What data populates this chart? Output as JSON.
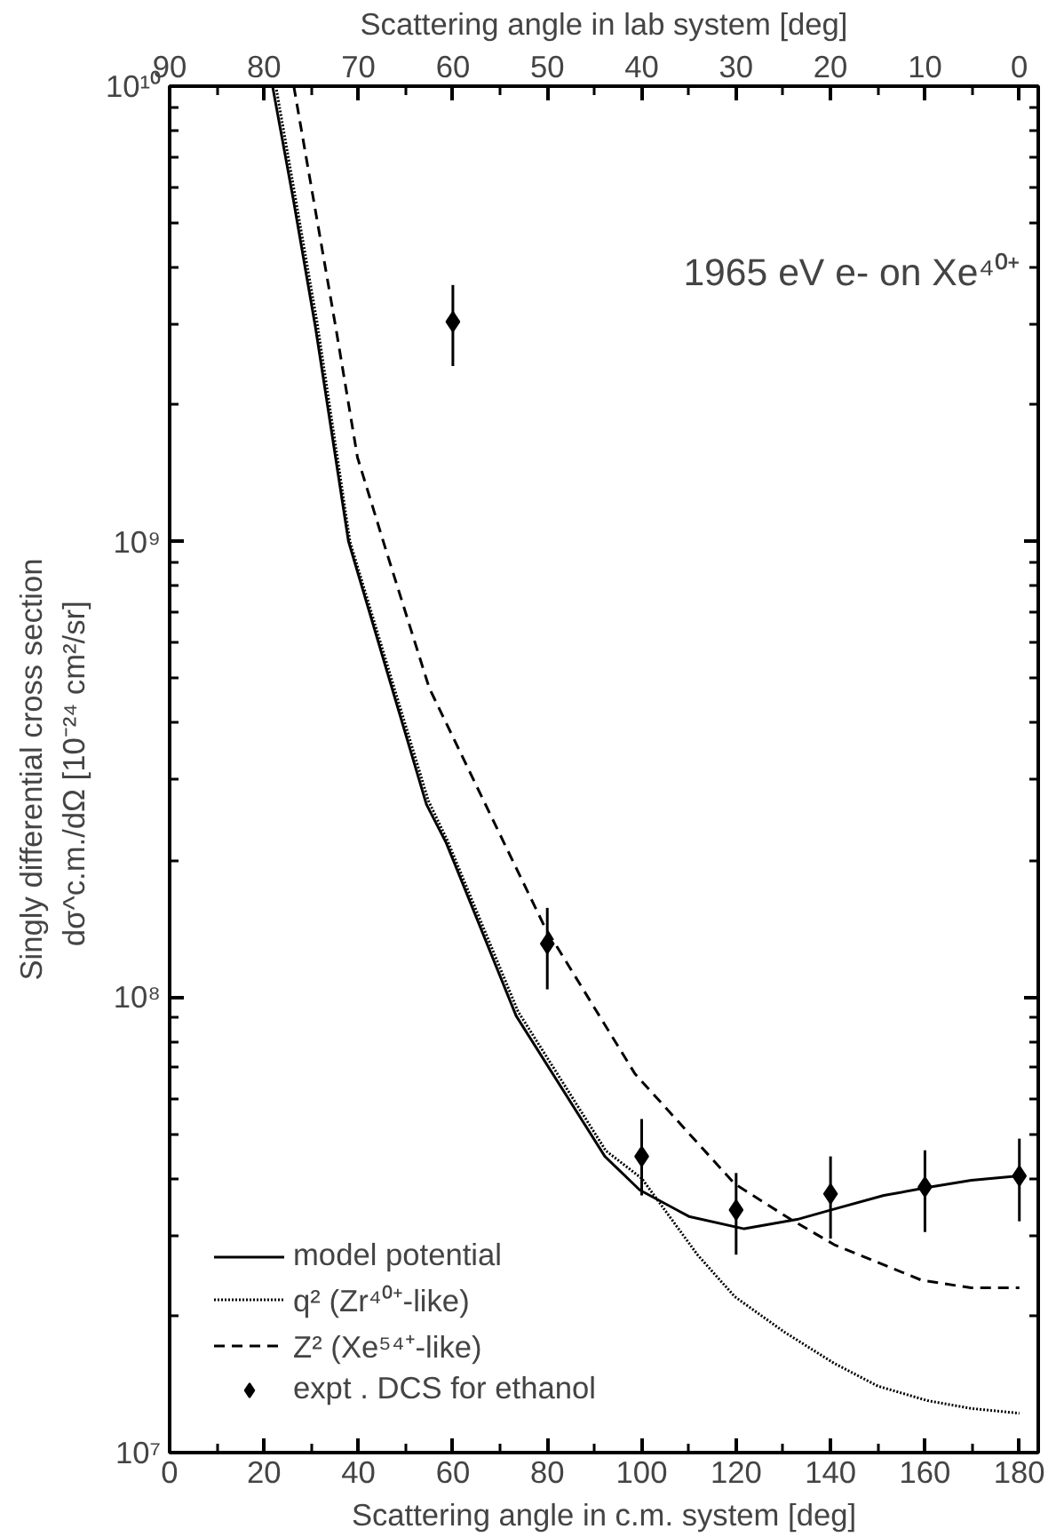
{
  "chart_data": {
    "type": "line",
    "title": "1965 eV e- on Xe⁴⁰⁺",
    "xlabel": "Scattering angle in c.m. system [deg]",
    "x2label": "Scattering angle in lab system [deg]",
    "ylabel": "Singly differential cross section\ndσ^c.m./dΩ  [10⁻²⁴ cm²/sr]",
    "log": "y",
    "grid": false,
    "legend": "bottom left",
    "xlim": [
      0,
      184
    ],
    "xticks": [
      0,
      20,
      40,
      60,
      80,
      100,
      120,
      140,
      160,
      180
    ],
    "x2lim": [
      90,
      -2
    ],
    "x2ticks": [
      90,
      80,
      70,
      60,
      50,
      40,
      30,
      20,
      10,
      0
    ],
    "ylim": [
      10000000.0,
      10000000000.0
    ],
    "yticks": [
      {
        "value": 10000000.0,
        "label": "10⁷"
      },
      {
        "value": 100000000.0,
        "label": "10⁸"
      },
      {
        "value": 1000000000.0,
        "label": "10⁹"
      },
      {
        "value": 10000000000.0,
        "label": "10¹⁰"
      }
    ],
    "series": [
      {
        "name": "model potential",
        "line_style": "solid",
        "color": "#000000",
        "x": [
          21.8,
          26.2,
          30.9,
          37.9,
          54.4,
          58.6,
          73.4,
          92.2,
          99.6,
          110,
          121.7,
          132.9,
          140.1,
          151.3,
          160.6,
          169.8,
          180
        ],
        "values": [
          10000000000.0,
          5640000000.0,
          2950000000.0,
          1000000000.0,
          265000000.0,
          218000000.0,
          91000000.0,
          44700000.0,
          37700000.0,
          33000000.0,
          31000000.0,
          32500000.0,
          34100000.0,
          36700000.0,
          38200000.0,
          39600000.0,
          40500000.0
        ]
      },
      {
        "name": "q² (Zr⁴⁰⁺-like)",
        "line_style": "dotted",
        "color": "#000000",
        "x": [
          22.5,
          26.5,
          31.3,
          38.2,
          54.8,
          58.9,
          73.8,
          92.4,
          100,
          111.8,
          119.7,
          130.2,
          140.8,
          150,
          160.6,
          169.8,
          180
        ],
        "values": [
          10000000000.0,
          5800000000.0,
          3000000000.0,
          1000000000.0,
          270000000.0,
          220000000.0,
          93000000.0,
          46000000.0,
          40000000.0,
          27200000.0,
          22000000.0,
          18400000.0,
          15700000.0,
          14000000.0,
          13000000.0,
          12500000.0,
          12200000.0
        ]
      },
      {
        "name": "Z² (Xe⁵⁴⁺-like)",
        "line_style": "dashed",
        "color": "#000000",
        "x": [
          26.3,
          35.2,
          39.8,
          45.8,
          55,
          68.9,
          79.4,
          98.6,
          119.7,
          131.6,
          140.8,
          159.3,
          169.8,
          180
        ],
        "values": [
          10000000000.0,
          2950000000.0,
          1530000000.0,
          960000000.0,
          477000000.0,
          240000000.0,
          143000000.0,
          67800000.0,
          38900000.0,
          32500000.0,
          28600000.0,
          23900000.0,
          23000000.0,
          23000000.0
        ]
      },
      {
        "name": "expt . DCS for ethanol",
        "type": "scatter",
        "marker": "diamond",
        "color": "#000000",
        "x": [
          60,
          80,
          100,
          120,
          140,
          160,
          180
        ],
        "values": [
          3040000000.0,
          131000000.0,
          44700000.0,
          34100000.0,
          37000000.0,
          38300000.0,
          40500000.0
        ],
        "errors": [
          [
            2430000000.0,
            3660000000.0
          ],
          [
            104000000.0,
            157000000.0
          ],
          [
            36700000.0,
            54000000.0
          ],
          [
            27200000.0,
            41100000.0
          ],
          [
            29500000.0,
            44700000.0
          ],
          [
            30500000.0,
            46100000.0
          ],
          [
            32200000.0,
            48900000.0
          ]
        ]
      }
    ]
  }
}
